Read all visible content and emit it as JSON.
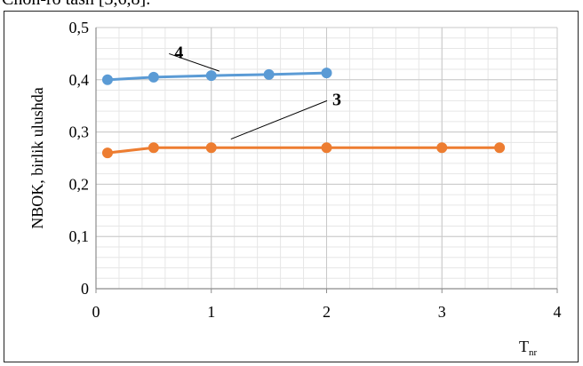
{
  "header_text": "Chon-ro tash [3,6,8].",
  "chart_data": {
    "type": "line",
    "ylabel": "NBOK, birlik ulushda",
    "xlabel": "T",
    "xlabel_sub": "nr",
    "xlim": [
      0,
      4
    ],
    "ylim": [
      0,
      0.5
    ],
    "x_ticks": [
      0,
      1,
      2,
      3,
      4
    ],
    "y_ticks": [
      0,
      0.1,
      0.2,
      0.3,
      0.4,
      0.5
    ],
    "x_tick_labels": [
      "0",
      "1",
      "2",
      "3",
      "4"
    ],
    "y_tick_labels": [
      "0",
      "0,1",
      "0,2",
      "0,3",
      "0,4",
      "0,5"
    ],
    "grid": true,
    "series": [
      {
        "name": "4",
        "color": "#5B9BD5",
        "x": [
          0.1,
          0.5,
          1.0,
          1.5,
          2.0
        ],
        "y": [
          0.4,
          0.405,
          0.408,
          0.41,
          0.413
        ],
        "label_at": [
          0.68,
          0.455
        ]
      },
      {
        "name": "3",
        "color": "#ED7D31",
        "x": [
          0.1,
          0.5,
          1.0,
          2.0,
          3.0,
          3.5
        ],
        "y": [
          0.26,
          0.27,
          0.27,
          0.27,
          0.27,
          0.27
        ],
        "label_at": [
          2.05,
          0.365
        ]
      }
    ]
  }
}
